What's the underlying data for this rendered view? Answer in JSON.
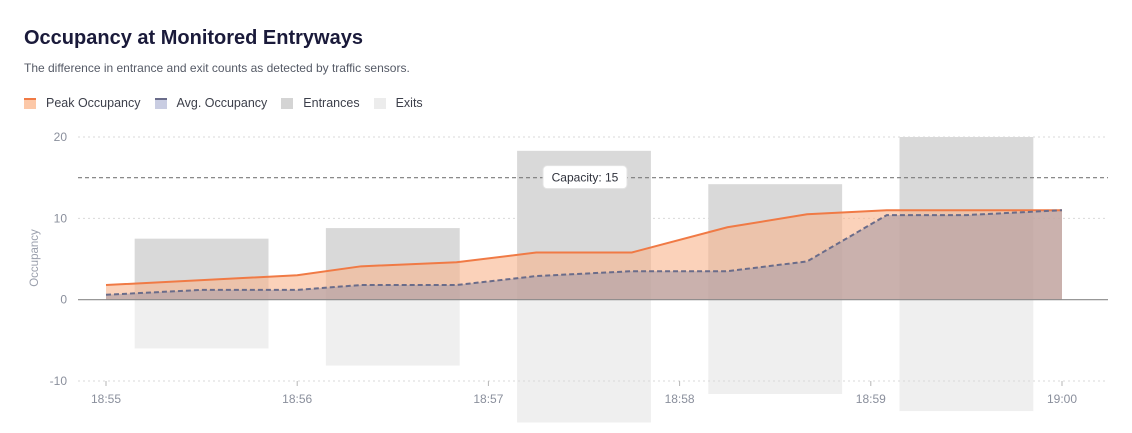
{
  "header": {
    "title": "Occupancy at Monitored Entryways",
    "subtitle": "The difference in entrance and exit counts as detected by traffic sensors."
  },
  "legend": {
    "items": [
      {
        "label": "Peak Occupancy",
        "swatch": "peak"
      },
      {
        "label": "Avg. Occupancy",
        "swatch": "avg"
      },
      {
        "label": "Entrances",
        "swatch": "entrances"
      },
      {
        "label": "Exits",
        "swatch": "exits"
      }
    ]
  },
  "chart_data": {
    "type": "area",
    "title": "Occupancy at Monitored Entryways",
    "subtitle": "The difference in entrance and exit counts as detected by traffic sensors.",
    "xlabel": "",
    "ylabel": "Occupancy",
    "ylim": [
      -10,
      20
    ],
    "yticks": [
      20,
      10,
      0,
      -10
    ],
    "xticks": [
      "18:55",
      "18:56",
      "18:57",
      "18:58",
      "18:59",
      "19:00"
    ],
    "grid": true,
    "legend_placement": "top-left",
    "capacity": {
      "value": 15,
      "label": "Capacity: 15"
    },
    "bars": {
      "categories": [
        "18:55:30",
        "18:56:30",
        "18:57:30",
        "18:58:30",
        "18:59:30"
      ],
      "entrances": [
        7.5,
        8.8,
        18.3,
        14.2,
        20
      ],
      "exits": [
        -6,
        -8.1,
        -15.1,
        -11.6,
        -13.7
      ]
    },
    "series": [
      {
        "name": "Peak Occupancy",
        "x": [
          "18:55:00",
          "18:56:00",
          "18:56:20",
          "18:56:50",
          "18:57:15",
          "18:57:45",
          "18:58:15",
          "18:58:40",
          "18:59:05",
          "18:59:30",
          "19:00:00"
        ],
        "values": [
          1.8,
          3.0,
          4.1,
          4.6,
          5.8,
          5.8,
          8.9,
          10.5,
          11.0,
          11.0,
          11.0
        ]
      },
      {
        "name": "Avg. Occupancy",
        "x": [
          "18:55:00",
          "18:55:30",
          "18:56:00",
          "18:56:20",
          "18:56:50",
          "18:57:15",
          "18:57:45",
          "18:58:15",
          "18:58:40",
          "18:59:05",
          "18:59:30",
          "19:00:00"
        ],
        "values": [
          0.6,
          1.2,
          1.2,
          1.8,
          1.8,
          2.9,
          3.5,
          3.5,
          4.7,
          10.4,
          10.4,
          11.0
        ]
      }
    ],
    "colors": {
      "peak_line": "#f07a45",
      "peak_fill": "#f9b48c",
      "avg_line": "#6a6c8a",
      "avg_fill": "#b9a5a8",
      "entrances": "#d9d9d9",
      "exits": "#efefef",
      "capacity_line": "#7a7a7a",
      "grid": "#dadada",
      "axis_text": "#8a8f9c"
    }
  }
}
